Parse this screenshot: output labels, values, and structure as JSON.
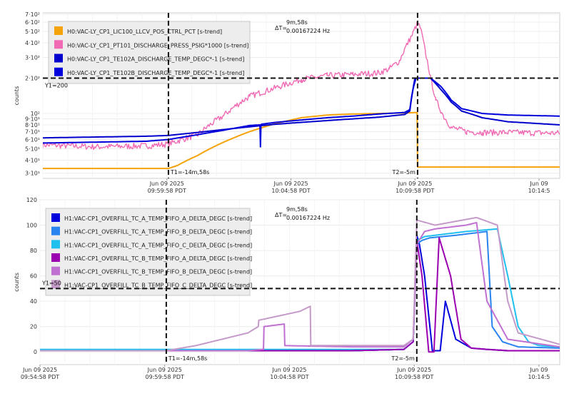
{
  "chart_data": [
    {
      "type": "line",
      "ylabel": "counts",
      "yscale": "log",
      "ylim": [
        28,
        720
      ],
      "yticks": [
        {
          "v": 31,
          "label": "3·10¹"
        },
        {
          "v": 40,
          "label": "4·10¹"
        },
        {
          "v": 50,
          "label": "5·10¹"
        },
        {
          "v": 60,
          "label": "6·10¹"
        },
        {
          "v": 70,
          "label": "7·10¹"
        },
        {
          "v": 80,
          "label": "8·10¹"
        },
        {
          "v": 90,
          "label": "9·10¹"
        },
        {
          "v": 100,
          "label": "10²"
        },
        {
          "v": 200,
          "label": "2·10²"
        },
        {
          "v": 300,
          "label": "3·10²"
        },
        {
          "v": 400,
          "label": "4·10²"
        },
        {
          "v": 500,
          "label": "5·10²"
        },
        {
          "v": 600,
          "label": "6·10²"
        },
        {
          "v": 700,
          "label": "7·10²"
        }
      ],
      "xlim": [
        0,
        1000
      ],
      "xticks": [
        {
          "t": 240,
          "line1": "Jun 09 2025",
          "line2": "09:59:58 PDT"
        },
        {
          "t": 480,
          "line1": "Jun 09 2025",
          "line2": "10:04:58 PDT"
        },
        {
          "t": 720,
          "line1": "Jun 09 2025",
          "line2": "10:09:58 PDT"
        },
        {
          "t": 960,
          "line1": "Jun 09",
          "line2": "10:14:5"
        }
      ],
      "legend_placement": "top-left",
      "cursors": {
        "t1": 243,
        "t1_label": "T1=-14m,58s",
        "t2": 725,
        "t2_label": "T2=-5m",
        "y1": 200,
        "y1_label": "Y1=200",
        "delta_symbol": "ΔT=",
        "delta_time": "9m,58s",
        "delta_freq": "0.00167224 Hz"
      },
      "series": [
        {
          "name": "H0:VAC-LY_CP1_LIC100_LLCV_POS_CTRL_PCT [s-trend]",
          "color": "#f5a30a",
          "x": [
            0,
            243,
            260,
            300,
            350,
            400,
            450,
            500,
            550,
            600,
            650,
            700,
            724,
            725,
            800,
            1000
          ],
          "y": [
            34,
            34,
            36,
            44,
            57,
            70,
            82,
            92,
            97,
            99,
            100,
            101,
            102,
            35,
            35,
            35
          ]
        },
        {
          "name": "H0:VAC-LY_CP1_PT101_DISCHARGE_PRESS_PSIG*1000 [s-trend]",
          "color": "#f06ab4",
          "x": [
            0,
            100,
            200,
            243,
            300,
            350,
            400,
            450,
            500,
            550,
            600,
            650,
            670,
            690,
            705,
            715,
            725,
            730,
            740,
            750,
            760,
            775,
            790,
            820,
            850,
            900,
            1000
          ],
          "y": [
            54,
            52,
            53,
            55,
            66,
            96,
            140,
            165,
            195,
            210,
            215,
            222,
            240,
            280,
            390,
            470,
            590,
            540,
            330,
            200,
            130,
            95,
            76,
            70,
            69,
            69,
            68
          ]
        },
        {
          "name": "H0:VAC-LY_CP1_TE102A_DISCHARGE_TEMP_DEGC*-1 [s-trend]",
          "color": "#0000cc",
          "x": [
            0,
            100,
            200,
            243,
            300,
            350,
            400,
            450,
            500,
            550,
            600,
            650,
            700,
            710,
            715,
            720,
            722,
            750,
            770,
            790,
            810,
            850,
            900,
            1000
          ],
          "y": [
            62,
            63,
            64,
            65,
            69,
            73,
            77,
            81,
            84,
            87,
            90,
            93,
            98,
            105,
            150,
            200,
            200,
            200,
            160,
            125,
            105,
            92,
            85,
            80
          ]
        },
        {
          "name": "H0:VAC-LY_CP1_TE102B_DISCHARGE_TEMP_DEGC*-1 [s-trend]",
          "color": "#0000dd",
          "x": [
            0,
            100,
            200,
            243,
            300,
            350,
            400,
            420,
            421,
            422,
            423,
            450,
            500,
            550,
            600,
            650,
            700,
            710,
            716,
            722,
            750,
            770,
            790,
            810,
            850,
            900,
            1000
          ],
          "y": [
            56,
            57,
            58,
            60,
            66,
            72,
            79,
            80,
            52,
            80,
            81,
            84,
            88,
            92,
            95,
            99,
            102,
            108,
            160,
            200,
            200,
            170,
            130,
            110,
            100,
            97,
            95
          ]
        }
      ]
    },
    {
      "type": "line",
      "ylabel": "counts",
      "ylim": [
        -10,
        120
      ],
      "yticks": [
        {
          "v": 0,
          "label": "0"
        },
        {
          "v": 20,
          "label": "20"
        },
        {
          "v": 40,
          "label": "40"
        },
        {
          "v": 60,
          "label": "60"
        },
        {
          "v": 80,
          "label": "80"
        },
        {
          "v": 100,
          "label": "100"
        },
        {
          "v": 120,
          "label": "120"
        }
      ],
      "xlim": [
        0,
        1000
      ],
      "xticks": [
        {
          "t": 0,
          "line1": "Jun 09 2025",
          "line2": "09:54:58 PDT"
        },
        {
          "t": 240,
          "line1": "Jun 09 2025",
          "line2": "09:59:58 PDT"
        },
        {
          "t": 480,
          "line1": "Jun 09 2025",
          "line2": "10:04:58 PDT"
        },
        {
          "t": 720,
          "line1": "Jun 09 2025",
          "line2": "10:09:58 PDT"
        },
        {
          "t": 960,
          "line1": "Jun 09",
          "line2": "10:14:5"
        }
      ],
      "legend_placement": "top-left",
      "cursors": {
        "t1": 243,
        "t1_label": "T1=-14m,58s",
        "t2": 725,
        "t2_label": "T2=-5m",
        "y1": 50,
        "y1_label": "Y1=50",
        "delta_symbol": "ΔT=",
        "delta_time": "9m,58s",
        "delta_freq": "0.00167224 Hz"
      },
      "series": [
        {
          "name": "H1:VAC-CP1_OVERFILL_TC_A_TEMP_FIFO_A_DELTA_DEGC [s-trend]",
          "color": "#0000dd",
          "x": [
            0,
            300,
            600,
            700,
            718,
            725,
            730,
            740,
            755,
            770,
            780,
            800,
            830,
            860,
            900,
            1000
          ],
          "y": [
            1,
            1,
            1,
            2,
            8,
            92,
            85,
            60,
            1,
            1,
            40,
            10,
            3,
            2,
            1,
            1
          ]
        },
        {
          "name": "H1:VAC-CP1_OVERFILL_TC_A_TEMP_FIFO_B_DELTA_DEGC [s-trend]",
          "color": "#2a84f0",
          "x": [
            0,
            300,
            600,
            700,
            718,
            725,
            735,
            750,
            800,
            820,
            840,
            860,
            870,
            890,
            920,
            1000
          ],
          "y": [
            1,
            1,
            1,
            2,
            8,
            85,
            88,
            90,
            92,
            93,
            94,
            95,
            20,
            8,
            4,
            3
          ]
        },
        {
          "name": "H1:VAC-CP1_OVERFILL_TC_A_TEMP_FIFO_C_DELTA_DEGC [s-trend]",
          "color": "#1fc0ee",
          "x": [
            0,
            300,
            600,
            700,
            718,
            725,
            740,
            780,
            820,
            880,
            900,
            920,
            940,
            960,
            1000
          ],
          "y": [
            2,
            2,
            2,
            2,
            8,
            88,
            91,
            93,
            95,
            97,
            60,
            20,
            8,
            5,
            4
          ]
        },
        {
          "name": "H1:VAC-CP1_OVERFILL_TC_B_TEMP_FIFO_A_DELTA_DEGC [s-trend]",
          "color": "#9a00b0",
          "x": [
            0,
            300,
            400,
            430,
            431,
            600,
            700,
            718,
            725,
            735,
            748,
            758,
            768,
            790,
            810,
            830,
            860,
            900,
            1000
          ],
          "y": [
            1,
            1,
            1,
            1,
            1,
            1,
            2,
            8,
            88,
            60,
            0,
            0,
            90,
            60,
            10,
            3,
            2,
            1,
            1
          ]
        },
        {
          "name": "H1:VAC-CP1_OVERFILL_TC_B_TEMP_FIFO_B_DELTA_DEGC [s-trend]",
          "color": "#c070d0",
          "x": [
            0,
            300,
            400,
            430,
            431,
            470,
            471,
            600,
            700,
            718,
            725,
            740,
            760,
            800,
            820,
            840,
            860,
            900,
            1000
          ],
          "y": [
            1,
            1,
            1,
            2,
            20,
            22,
            5,
            4,
            4,
            10,
            85,
            95,
            97,
            99,
            100,
            102,
            40,
            10,
            4
          ]
        },
        {
          "name": "H1:VAC-CP1_OVERFILL_TC_B_TEMP_FIFO_C_DELTA_DEGC [s-trend]",
          "color": "#c49ac8",
          "x": [
            0,
            243,
            300,
            400,
            420,
            421,
            500,
            520,
            521,
            600,
            700,
            718,
            725,
            760,
            800,
            840,
            880,
            900,
            920,
            1000
          ],
          "y": [
            1,
            1,
            5,
            15,
            20,
            25,
            32,
            36,
            5,
            5,
            5,
            10,
            104,
            100,
            103,
            106,
            100,
            40,
            15,
            6
          ]
        }
      ]
    }
  ]
}
